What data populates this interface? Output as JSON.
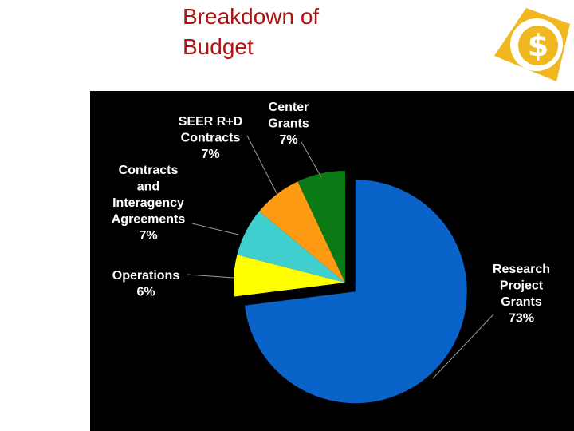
{
  "page": {
    "title_line1": "Breakdown of",
    "title_line2": "Budget"
  },
  "logo": {
    "icon": "dollar-sign-icon",
    "color": "#f0b81e",
    "glyph": "$"
  },
  "chart_data": {
    "type": "pie",
    "title": "Breakdown of Budget",
    "exploded": "Research Project Grants",
    "background": "#000000",
    "slices": [
      {
        "key": "research",
        "label_lines": [
          "Research",
          "Project",
          "Grants",
          "73%"
        ],
        "value": 73,
        "color": "#0a63c9"
      },
      {
        "key": "operations",
        "label_lines": [
          "Operations",
          "6%"
        ],
        "value": 6,
        "color": "#ffff00"
      },
      {
        "key": "contracts",
        "label_lines": [
          "Contracts",
          "and",
          "Interagency",
          "Agreements",
          "7%"
        ],
        "value": 7,
        "color": "#3fcfcf"
      },
      {
        "key": "seer",
        "label_lines": [
          "SEER R+D",
          "Contracts",
          "7%"
        ],
        "value": 7,
        "color": "#ff9b12"
      },
      {
        "key": "center",
        "label_lines": [
          "Center",
          "Grants",
          "7%"
        ],
        "value": 7,
        "color": "#0a7a14"
      }
    ]
  }
}
